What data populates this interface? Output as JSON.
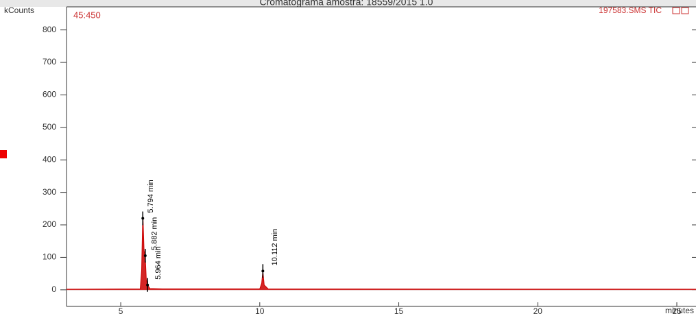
{
  "chart_data": {
    "type": "line",
    "title": "Cromatograma amostra: 18559/2015 1.0",
    "y_label": "kCounts",
    "x_label": "minutes",
    "time_label": "45:450",
    "trace_label": "197583.SMS TIC",
    "xlim": [
      3.05,
      25.69
    ],
    "ylim": [
      -51,
      871
    ],
    "xticks": [
      5,
      10,
      15,
      20,
      25
    ],
    "yticks": [
      0,
      100,
      200,
      300,
      400,
      500,
      600,
      700,
      800
    ],
    "series": [
      {
        "name": "197583.SMS TIC",
        "color": "#cc0000",
        "x": [
          3.05,
          5.7,
          5.75,
          5.794,
          5.84,
          5.882,
          5.92,
          5.964,
          6.05,
          6.5,
          10.0,
          10.07,
          10.112,
          10.16,
          10.3,
          25.69
        ],
        "values": [
          2,
          3,
          60,
          240,
          120,
          105,
          30,
          15,
          4,
          3,
          3,
          20,
          58,
          15,
          3,
          2
        ]
      }
    ],
    "annotations": [
      {
        "x": 5.794,
        "y": 220,
        "label": "5.794 min"
      },
      {
        "x": 5.882,
        "y": 105,
        "label": "5.882 min"
      },
      {
        "x": 5.964,
        "y": 15,
        "label": "5.964 min"
      },
      {
        "x": 10.112,
        "y": 58,
        "label": "10.112 min"
      }
    ]
  }
}
